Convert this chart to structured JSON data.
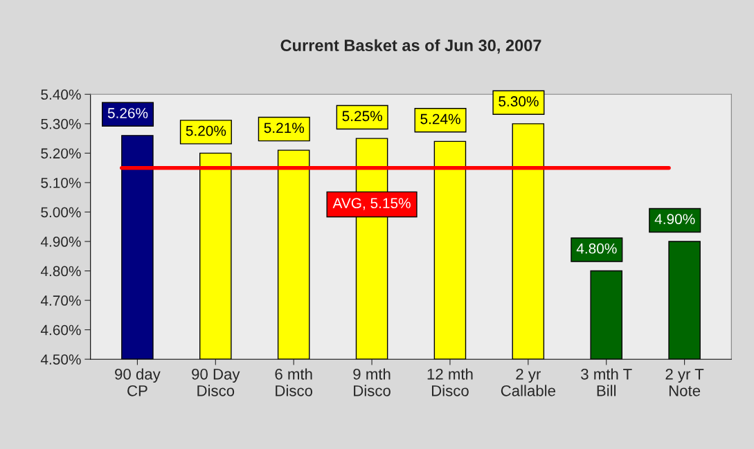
{
  "chart_data": {
    "type": "bar",
    "title": "Current Basket as of Jun 30, 2007",
    "categories": [
      "90 day\nCP",
      "90 Day\nDisco",
      "6 mth\nDisco",
      "9 mth\nDisco",
      "12 mth\nDisco",
      "2 yr\nCallable",
      "3 mth T\nBill",
      "2 yr T\nNote"
    ],
    "values": [
      5.26,
      5.2,
      5.21,
      5.25,
      5.24,
      5.3,
      4.8,
      4.9
    ],
    "colors": [
      "#000080",
      "#ffff00",
      "#ffff00",
      "#ffff00",
      "#ffff00",
      "#ffff00",
      "#006600",
      "#006600"
    ],
    "value_labels": [
      "5.26%",
      "5.20%",
      "5.21%",
      "5.25%",
      "5.24%",
      "5.30%",
      "4.80%",
      "4.90%"
    ],
    "ylim": [
      4.5,
      5.4
    ],
    "yticks": [
      {
        "value": 4.5,
        "label": "4.50%"
      },
      {
        "value": 4.6,
        "label": "4.60%"
      },
      {
        "value": 4.7,
        "label": "4.70%"
      },
      {
        "value": 4.8,
        "label": "4.80%"
      },
      {
        "value": 4.9,
        "label": "4.90%"
      },
      {
        "value": 5.0,
        "label": "5.00%"
      },
      {
        "value": 5.1,
        "label": "5.10%"
      },
      {
        "value": 5.2,
        "label": "5.20%"
      },
      {
        "value": 5.3,
        "label": "5.30%"
      },
      {
        "value": 5.4,
        "label": "5.40%"
      }
    ],
    "ref_lines": [
      {
        "axis": "y",
        "value": 5.15,
        "label": "AVG, 5.15%",
        "color": "#ff0000"
      }
    ],
    "grid": false
  }
}
